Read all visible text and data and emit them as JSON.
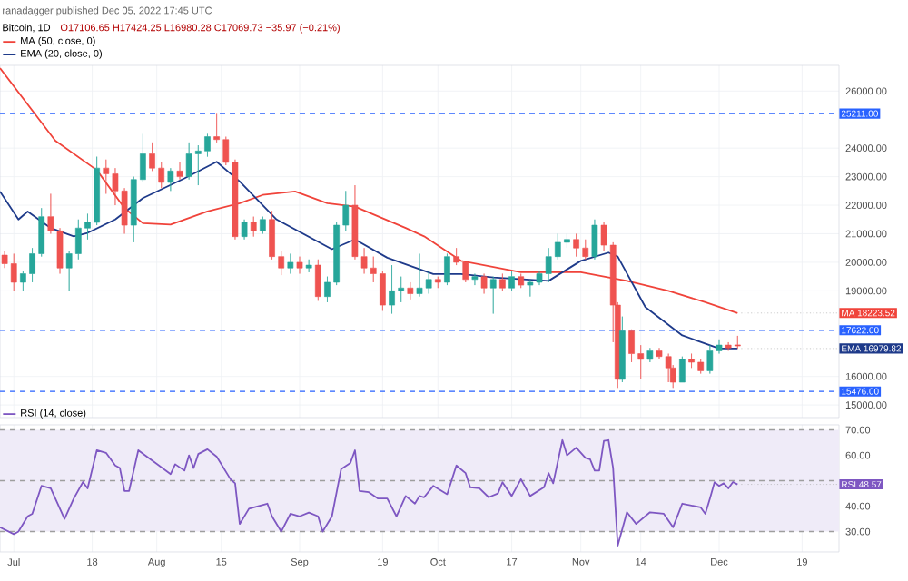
{
  "chart_data": [
    {
      "type": "candlestick",
      "title": "Bitcoin, 1D",
      "subtitle": "O17106.65 H17424.25 L16980.28 C17069.73 −35.97 (−0.21%)",
      "annotations": [
        "ranadagger published Dec 05, 2022 17:45 UTC",
        {
          "text": "MA 18223.52",
          "x": "2022-12-05",
          "y": 18223.52
        },
        {
          "text": "EMA 16979.82",
          "x": "2022-12-05",
          "y": 16979.82
        }
      ],
      "x": [
        "2022-06-29",
        "2022-07-01",
        "2022-07-03",
        "2022-07-05",
        "2022-07-07",
        "2022-07-09",
        "2022-07-11",
        "2022-07-13",
        "2022-07-15",
        "2022-07-17",
        "2022-07-19",
        "2022-07-21",
        "2022-07-23",
        "2022-07-25",
        "2022-07-27",
        "2022-07-29",
        "2022-07-31",
        "2022-08-02",
        "2022-08-04",
        "2022-08-06",
        "2022-08-08",
        "2022-08-10",
        "2022-08-12",
        "2022-08-14",
        "2022-08-16",
        "2022-08-18",
        "2022-08-20",
        "2022-08-22",
        "2022-08-24",
        "2022-08-26",
        "2022-08-28",
        "2022-08-30",
        "2022-09-01",
        "2022-09-03",
        "2022-09-05",
        "2022-09-07",
        "2022-09-09",
        "2022-09-11",
        "2022-09-13",
        "2022-09-15",
        "2022-09-17",
        "2022-09-19",
        "2022-09-21",
        "2022-09-23",
        "2022-09-25",
        "2022-09-27",
        "2022-09-29",
        "2022-10-01",
        "2022-10-03",
        "2022-10-05",
        "2022-10-07",
        "2022-10-09",
        "2022-10-11",
        "2022-10-13",
        "2022-10-15",
        "2022-10-17",
        "2022-10-19",
        "2022-10-21",
        "2022-10-23",
        "2022-10-25",
        "2022-10-27",
        "2022-10-29",
        "2022-10-31",
        "2022-11-02",
        "2022-11-04",
        "2022-11-06",
        "2022-11-08",
        "2022-11-09",
        "2022-11-10",
        "2022-11-12",
        "2022-11-14",
        "2022-11-16",
        "2022-11-18",
        "2022-11-20",
        "2022-11-21",
        "2022-11-23",
        "2022-11-25",
        "2022-11-27",
        "2022-11-29",
        "2022-12-01",
        "2022-12-03",
        "2022-12-05"
      ],
      "ohlc": [
        [
          20250,
          20400,
          19800,
          19950
        ],
        [
          19950,
          20300,
          19000,
          19300
        ],
        [
          19300,
          19700,
          19000,
          19600
        ],
        [
          19600,
          20500,
          19300,
          20300
        ],
        [
          20300,
          21900,
          20200,
          21600
        ],
        [
          21600,
          22400,
          21000,
          21100
        ],
        [
          21100,
          21200,
          19600,
          19800
        ],
        [
          19800,
          20400,
          19000,
          20300
        ],
        [
          20300,
          21500,
          20100,
          21200
        ],
        [
          21200,
          21700,
          20800,
          21400
        ],
        [
          21400,
          23700,
          21300,
          23300
        ],
        [
          23300,
          23600,
          22400,
          23100
        ],
        [
          23100,
          23300,
          22000,
          22500
        ],
        [
          22500,
          22600,
          21000,
          21300
        ],
        [
          21300,
          23000,
          20700,
          22900
        ],
        [
          22900,
          24500,
          22800,
          23800
        ],
        [
          23800,
          24200,
          23200,
          23300
        ],
        [
          23300,
          23500,
          22600,
          22800
        ],
        [
          22800,
          23300,
          22500,
          23200
        ],
        [
          23200,
          23500,
          22900,
          23000
        ],
        [
          23000,
          24200,
          22900,
          23800
        ],
        [
          23800,
          24100,
          22700,
          23900
        ],
        [
          23900,
          24500,
          23700,
          24400
        ],
        [
          24400,
          25200,
          24200,
          24300
        ],
        [
          24300,
          24400,
          23400,
          23500
        ],
        [
          23500,
          23600,
          20800,
          20900
        ],
        [
          20900,
          21500,
          20800,
          21400
        ],
        [
          21400,
          21600,
          20900,
          21100
        ],
        [
          21100,
          21600,
          21000,
          21500
        ],
        [
          21500,
          21800,
          20100,
          20200
        ],
        [
          20200,
          20400,
          19550,
          19800
        ],
        [
          19800,
          20300,
          19600,
          20000
        ],
        [
          20000,
          20200,
          19600,
          19800
        ],
        [
          19800,
          20100,
          19650,
          19900
        ],
        [
          19900,
          20100,
          18650,
          18800
        ],
        [
          18800,
          19500,
          18600,
          19300
        ],
        [
          19300,
          21400,
          19200,
          21300
        ],
        [
          21300,
          22500,
          21100,
          22000
        ],
        [
          22000,
          22700,
          20100,
          20200
        ],
        [
          20200,
          20500,
          19600,
          19800
        ],
        [
          19800,
          20200,
          19300,
          19600
        ],
        [
          19600,
          19700,
          18300,
          18500
        ],
        [
          18500,
          19900,
          18200,
          19000
        ],
        [
          19000,
          19500,
          18600,
          19100
        ],
        [
          19100,
          19300,
          18700,
          18900
        ],
        [
          18900,
          20300,
          18800,
          19100
        ],
        [
          19100,
          19700,
          18900,
          19400
        ],
        [
          19400,
          19500,
          19100,
          19300
        ],
        [
          19300,
          20300,
          19200,
          20200
        ],
        [
          20200,
          20500,
          19900,
          20000
        ],
        [
          20000,
          20000,
          19300,
          19400
        ],
        [
          19400,
          19600,
          19200,
          19500
        ],
        [
          19500,
          19600,
          18900,
          19100
        ],
        [
          19100,
          19500,
          18200,
          19400
        ],
        [
          19400,
          19600,
          19000,
          19100
        ],
        [
          19100,
          19700,
          19000,
          19500
        ],
        [
          19500,
          19600,
          19100,
          19200
        ],
        [
          19200,
          19400,
          18800,
          19300
        ],
        [
          19300,
          19700,
          19200,
          19600
        ],
        [
          19600,
          20500,
          19300,
          20200
        ],
        [
          20200,
          21000,
          20100,
          20700
        ],
        [
          20700,
          21000,
          20500,
          20800
        ],
        [
          20800,
          21000,
          20200,
          20500
        ],
        [
          20500,
          20800,
          20100,
          20200
        ],
        [
          20200,
          21500,
          20100,
          21300
        ],
        [
          21300,
          21400,
          20400,
          20600
        ],
        [
          20600,
          20700,
          17200,
          18500
        ],
        [
          18500,
          18600,
          15600,
          15900
        ],
        [
          15900,
          18100,
          15800,
          17600
        ],
        [
          17600,
          17650,
          16500,
          16800
        ],
        [
          16800,
          17100,
          15900,
          16600
        ],
        [
          16600,
          17000,
          16500,
          16900
        ],
        [
          16900,
          17000,
          16600,
          16700
        ],
        [
          16700,
          16800,
          15800,
          16300
        ],
        [
          16300,
          16400,
          15600,
          15800
        ],
        [
          15800,
          16700,
          15800,
          16600
        ],
        [
          16600,
          16800,
          16300,
          16500
        ],
        [
          16500,
          16600,
          16100,
          16200
        ],
        [
          16200,
          17100,
          16100,
          16900
        ],
        [
          16900,
          17300,
          16800,
          17100
        ],
        [
          17100,
          17200,
          16900,
          17000
        ],
        [
          17106.65,
          17424.25,
          16980.28,
          17069.73
        ]
      ],
      "series": [
        {
          "name": "MA (50, close, 0)",
          "type": "line",
          "color": "#f0433a",
          "x": [
            "2022-06-28",
            "2022-07-10",
            "2022-07-19",
            "2022-07-25",
            "2022-07-29",
            "2022-08-04",
            "2022-08-12",
            "2022-08-19",
            "2022-08-24",
            "2022-08-31",
            "2022-09-07",
            "2022-09-13",
            "2022-09-24",
            "2022-09-28",
            "2022-10-06",
            "2022-10-19",
            "2022-11-01",
            "2022-11-11",
            "2022-11-20",
            "2022-11-28",
            "2022-12-05"
          ],
          "values": [
            26800,
            24260,
            23230,
            21900,
            21370,
            21320,
            21780,
            22070,
            22360,
            22480,
            22070,
            21950,
            21200,
            20910,
            20050,
            19650,
            19650,
            19350,
            19000,
            18600,
            18223.52
          ]
        },
        {
          "name": "EMA (20, close, 0)",
          "type": "line",
          "color": "#1e3a8a",
          "x": [
            "2022-06-28",
            "2022-07-02",
            "2022-07-04",
            "2022-07-09",
            "2022-07-14",
            "2022-07-17",
            "2022-07-23",
            "2022-07-29",
            "2022-08-07",
            "2022-08-14",
            "2022-08-19",
            "2022-08-27",
            "2022-09-08",
            "2022-09-13",
            "2022-09-20",
            "2022-09-24",
            "2022-09-30",
            "2022-10-06",
            "2022-10-13",
            "2022-10-25",
            "2022-11-01",
            "2022-11-07",
            "2022-11-09",
            "2022-11-15",
            "2022-11-23",
            "2022-12-01",
            "2022-12-05"
          ],
          "values": [
            22480,
            21500,
            21780,
            21200,
            20910,
            21030,
            21500,
            22250,
            22940,
            23520,
            22830,
            21500,
            20460,
            20800,
            20160,
            19930,
            19590,
            19590,
            19470,
            19350,
            20050,
            20340,
            20200,
            18430,
            17440,
            16980,
            16979.82
          ]
        }
      ],
      "xlim": [
        "2022-06-28",
        "2022-12-27"
      ],
      "ylim": [
        14560,
        26900
      ],
      "xticks": [
        {
          "value": "2022-07-01",
          "label": null
        },
        {
          "value": "2022-07-18",
          "label": null
        },
        {
          "value": "2022-08-01",
          "label": null
        },
        {
          "value": "2022-08-15",
          "label": null
        },
        {
          "value": "2022-09-01",
          "label": null
        },
        {
          "value": "2022-09-19",
          "label": null
        },
        {
          "value": "2022-10-01",
          "label": null
        },
        {
          "value": "2022-10-17",
          "label": null
        },
        {
          "value": "2022-11-01",
          "label": null
        },
        {
          "value": "2022-11-14",
          "label": null
        },
        {
          "value": "2022-12-01",
          "label": null
        },
        {
          "value": "2022-12-19",
          "label": null
        }
      ],
      "yticks": [
        {
          "value": 15000,
          "label": "15000.00"
        },
        {
          "value": 16000,
          "label": "16000.00"
        },
        {
          "value": 19000,
          "label": "19000.00"
        },
        {
          "value": 20000,
          "label": "20000.00"
        },
        {
          "value": 21000,
          "label": "21000.00"
        },
        {
          "value": 22000,
          "label": "22000.00"
        },
        {
          "value": 23000,
          "label": "23000.00"
        },
        {
          "value": 24000,
          "label": "24000.00"
        },
        {
          "value": 26000,
          "label": "26000.00"
        }
      ],
      "ref_lines": [
        {
          "axis": "y",
          "value": 25211,
          "label": "25211.00",
          "color": "#2962ff",
          "line_style": "dashed"
        },
        {
          "axis": "y",
          "value": 17622,
          "label": "17622.00",
          "color": "#2962ff",
          "line_style": "dashed"
        },
        {
          "axis": "y",
          "value": 15476,
          "label": "15476.00",
          "color": "#2962ff",
          "line_style": "dashed"
        }
      ],
      "grid": true,
      "legend": "top left",
      "tick_labels": "y"
    },
    {
      "type": "line",
      "annotations": [
        {
          "text": "RSI 48.57",
          "x": "2022-12-05",
          "y": 48.57
        }
      ],
      "series": [
        {
          "name": "RSI (14, close)",
          "color": "#7e57c2",
          "x": [
            "2022-06-28",
            "2022-07-01",
            "2022-07-02",
            "2022-07-04",
            "2022-07-05",
            "2022-07-07",
            "2022-07-09",
            "2022-07-12",
            "2022-07-14",
            "2022-07-16",
            "2022-07-17",
            "2022-07-19",
            "2022-07-21",
            "2022-07-23",
            "2022-07-24",
            "2022-07-25",
            "2022-07-26",
            "2022-07-28",
            "2022-07-31",
            "2022-08-04",
            "2022-08-05",
            "2022-08-07",
            "2022-08-08",
            "2022-08-09",
            "2022-08-10",
            "2022-08-12",
            "2022-08-14",
            "2022-08-17",
            "2022-08-18",
            "2022-08-19",
            "2022-08-21",
            "2022-08-23",
            "2022-08-25",
            "2022-08-26",
            "2022-08-28",
            "2022-08-30",
            "2022-09-01",
            "2022-09-03",
            "2022-09-05",
            "2022-09-06",
            "2022-09-08",
            "2022-09-10",
            "2022-09-12",
            "2022-09-13",
            "2022-09-14",
            "2022-09-16",
            "2022-09-18",
            "2022-09-20",
            "2022-09-22",
            "2022-09-24",
            "2022-09-26",
            "2022-09-27",
            "2022-09-28",
            "2022-09-30",
            "2022-10-03",
            "2022-10-05",
            "2022-10-07",
            "2022-10-08",
            "2022-10-10",
            "2022-10-12",
            "2022-10-14",
            "2022-10-15",
            "2022-10-17",
            "2022-10-19",
            "2022-10-21",
            "2022-10-24",
            "2022-10-25",
            "2022-10-26",
            "2022-10-28",
            "2022-10-29",
            "2022-10-31",
            "2022-11-02",
            "2022-11-03",
            "2022-11-04",
            "2022-11-05",
            "2022-11-06",
            "2022-11-07",
            "2022-11-08",
            "2022-11-09",
            "2022-11-11",
            "2022-11-13",
            "2022-11-16",
            "2022-11-19",
            "2022-11-21",
            "2022-11-23",
            "2022-11-27",
            "2022-11-28",
            "2022-11-29",
            "2022-11-30",
            "2022-12-01",
            "2022-12-02",
            "2022-12-03",
            "2022-12-04",
            "2022-12-05"
          ],
          "values": [
            31.7,
            29,
            30,
            36,
            37,
            48,
            47,
            35,
            43,
            49.5,
            47,
            62,
            61,
            56,
            55,
            46,
            46,
            62,
            58,
            52.6,
            56.5,
            54,
            60,
            55,
            60.5,
            62.4,
            59.5,
            50.6,
            49,
            33,
            39,
            40,
            41,
            36,
            30,
            37,
            36,
            37.5,
            36,
            30,
            36,
            54.6,
            57,
            62,
            46,
            45.5,
            43,
            43,
            36,
            44,
            41,
            44,
            43.5,
            48,
            44.7,
            56,
            53,
            47.4,
            47,
            43.5,
            45,
            49.4,
            44,
            50.6,
            44,
            47.4,
            53,
            49,
            66,
            60,
            63,
            59,
            58.5,
            54,
            54,
            65.7,
            66,
            55,
            24.5,
            37.6,
            33,
            37.6,
            37,
            31.7,
            41,
            39.5,
            37,
            43,
            49.4,
            48,
            49,
            47,
            49.5,
            48.57
          ]
        }
      ],
      "xlim": [
        "2022-06-28",
        "2022-12-27"
      ],
      "ylim": [
        22,
        72
      ],
      "xticks": [
        {
          "value": "2022-07-01",
          "label": "Jul"
        },
        {
          "value": "2022-07-18",
          "label": "18"
        },
        {
          "value": "2022-08-01",
          "label": "Aug"
        },
        {
          "value": "2022-08-15",
          "label": "15"
        },
        {
          "value": "2022-09-01",
          "label": "Sep"
        },
        {
          "value": "2022-09-19",
          "label": "19"
        },
        {
          "value": "2022-10-01",
          "label": "Oct"
        },
        {
          "value": "2022-10-17",
          "label": "17"
        },
        {
          "value": "2022-11-01",
          "label": "Nov"
        },
        {
          "value": "2022-11-14",
          "label": "14"
        },
        {
          "value": "2022-12-01",
          "label": "Dec"
        },
        {
          "value": "2022-12-19",
          "label": "19"
        }
      ],
      "yticks": [
        {
          "value": 30,
          "label": "30.00"
        },
        {
          "value": 40,
          "label": "40.00"
        },
        {
          "value": 60,
          "label": "60.00"
        },
        {
          "value": 70,
          "label": "70.00"
        }
      ],
      "bands": [
        {
          "axis": "y",
          "from": 30,
          "to": 70,
          "color": "#efebf8"
        }
      ],
      "ref_lines": [
        {
          "axis": "y",
          "value": 30,
          "color": "#9e9e9e",
          "line_style": "dashed"
        },
        {
          "axis": "y",
          "value": 50,
          "color": "#9e9e9e",
          "line_style": "dashed"
        },
        {
          "axis": "y",
          "value": 70,
          "color": "#9e9e9e",
          "line_style": "dashed"
        }
      ],
      "grid": "x",
      "legend": "top left"
    }
  ]
}
